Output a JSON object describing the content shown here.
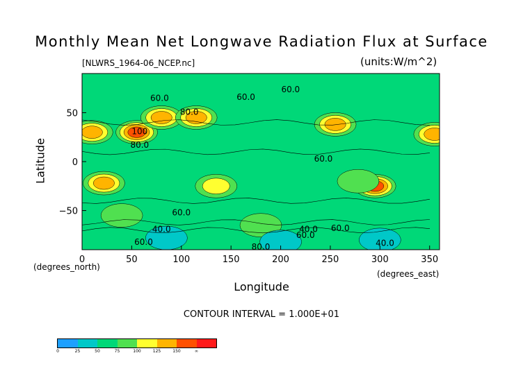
{
  "chart_data": {
    "type": "heatmap",
    "title": "Monthly Mean Net Longwave Radiation Flux at Surface",
    "subtitle": "[NLWRS_1964-06_NCEP.nc]",
    "units": "(units:W/m^2)",
    "xlabel": "Longitude",
    "ylabel": "Latitude",
    "x_unit": "(degrees_east)",
    "y_unit": "(degrees_north)",
    "xlim": [
      0,
      360
    ],
    "ylim": [
      -90,
      90
    ],
    "x_ticks": [
      "0",
      "50",
      "100",
      "150",
      "200",
      "250",
      "300",
      "350"
    ],
    "y_ticks": [
      "50",
      "0",
      "−50"
    ],
    "contour_interval": "CONTOUR INTERVAL = 1.000E+01",
    "contour_labels": [
      {
        "lon": 78,
        "lat": 62,
        "text": "60.0"
      },
      {
        "lon": 108,
        "lat": 48,
        "text": "80.0"
      },
      {
        "lon": 58,
        "lat": 28,
        "text": "100"
      },
      {
        "lon": 58,
        "lat": 14,
        "text": "80.0"
      },
      {
        "lon": 165,
        "lat": 63,
        "text": "60.0"
      },
      {
        "lon": 210,
        "lat": 71,
        "text": "60.0"
      },
      {
        "lon": 243,
        "lat": 0,
        "text": "60.0"
      },
      {
        "lon": 100,
        "lat": -55,
        "text": "60.0"
      },
      {
        "lon": 80,
        "lat": -72,
        "text": "40.0"
      },
      {
        "lon": 228,
        "lat": -72,
        "text": "40.0"
      },
      {
        "lon": 260,
        "lat": -71,
        "text": "60.0"
      },
      {
        "lon": 225,
        "lat": -78,
        "text": "60.0"
      },
      {
        "lon": 62,
        "lat": -85,
        "text": "60.0"
      },
      {
        "lon": 180,
        "lat": -90,
        "text": "80.0"
      },
      {
        "lon": 305,
        "lat": -86,
        "text": "40.0"
      }
    ],
    "features": [
      {
        "lon": 10,
        "lat": 30,
        "value": 130
      },
      {
        "lon": 55,
        "lat": 30,
        "value": 150
      },
      {
        "lon": 80,
        "lat": 45,
        "value": 125
      },
      {
        "lon": 115,
        "lat": 45,
        "value": 130
      },
      {
        "lon": 255,
        "lat": 38,
        "value": 140
      },
      {
        "lon": 355,
        "lat": 28,
        "value": 145
      },
      {
        "lon": 22,
        "lat": -22,
        "value": 125
      },
      {
        "lon": 135,
        "lat": -25,
        "value": 120
      },
      {
        "lon": 295,
        "lat": -25,
        "value": 160
      },
      {
        "lon": 278,
        "lat": -20,
        "value": 95
      },
      {
        "lon": 40,
        "lat": -55,
        "value": 95
      },
      {
        "lon": 180,
        "lat": -65,
        "value": 95
      },
      {
        "lon": 300,
        "lat": -80,
        "value": 15
      },
      {
        "lon": 85,
        "lat": -78,
        "value": 35
      },
      {
        "lon": 200,
        "lat": -82,
        "value": 35
      }
    ],
    "colorbar": {
      "ticks": [
        "0",
        "25",
        "50",
        "75",
        "100",
        "125",
        "150",
        "∞"
      ],
      "colors": [
        "#1ea0ff",
        "#00c8c8",
        "#00d878",
        "#50e050",
        "#ffff30",
        "#ffb400",
        "#ff5000",
        "#ff1a1a"
      ]
    }
  }
}
